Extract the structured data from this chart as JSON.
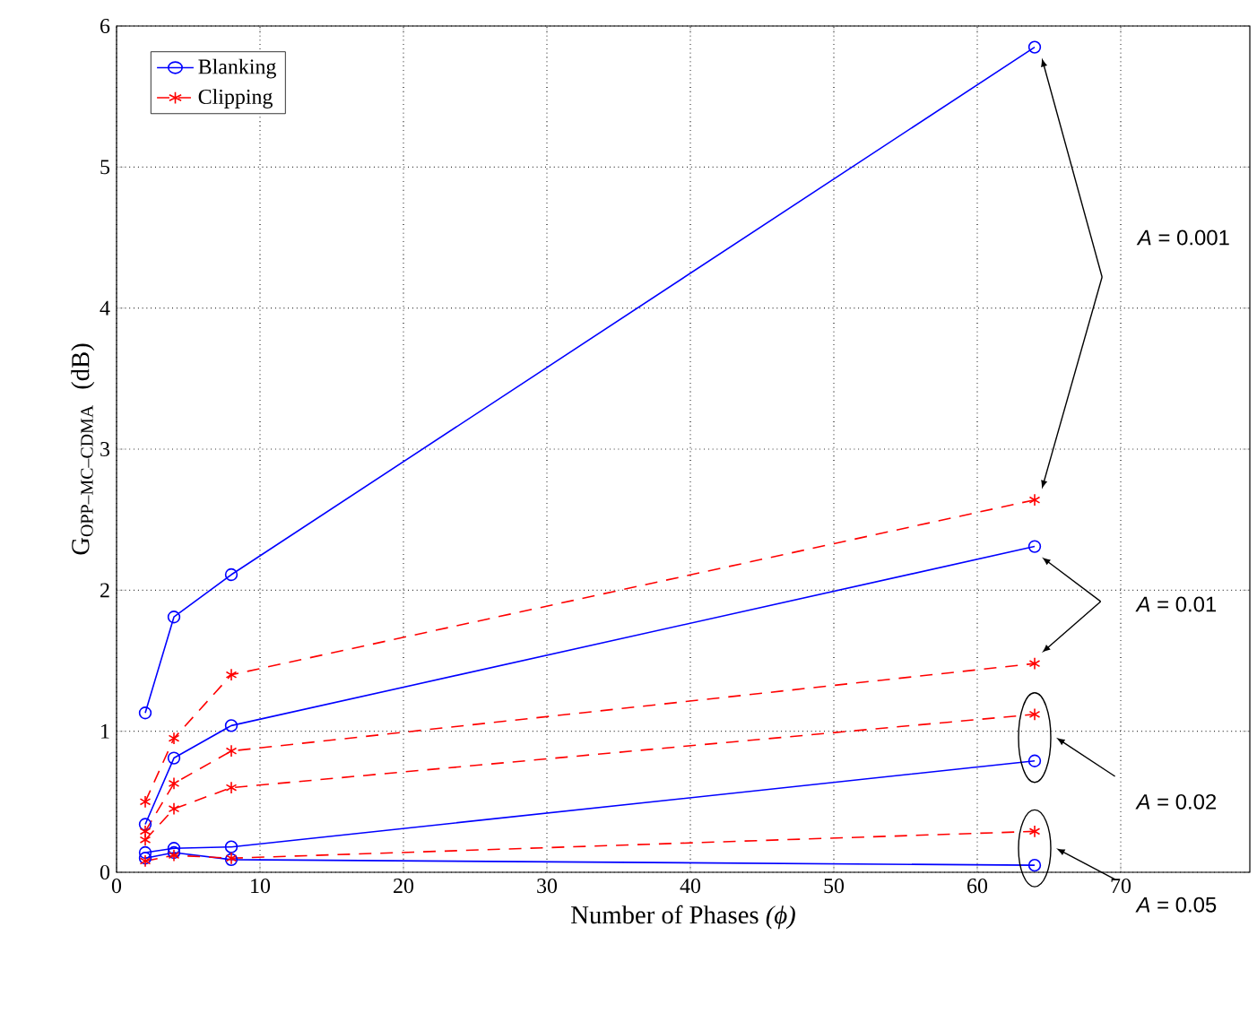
{
  "chart_data": {
    "type": "line",
    "xlabel": "Number of Phases *(ϕ)*",
    "ylabel": "\\mathrm{G}_{\\textrm{OPP–MC–CDMA}}\\;\\;\\textrm{(dB)}",
    "xlim": [
      0,
      79
    ],
    "xticks": [
      0,
      10,
      20,
      30,
      40,
      50,
      60,
      70
    ],
    "ylim": [
      0,
      6
    ],
    "yticks": [
      0,
      1,
      2,
      3,
      4,
      5,
      6
    ],
    "grid": true,
    "legend": "top left",
    "x": [
      2,
      4,
      8,
      64
    ],
    "series": [
      {
        "name": "Blanking",
        "color": "#0000ff",
        "marker": "circle",
        "line_style": "solid",
        "values": [
          1.13,
          1.81,
          2.11,
          5.85
        ]
      },
      {
        "color": "#0000ff",
        "marker": "circle",
        "line_style": "solid",
        "values": [
          0.34,
          0.81,
          1.04,
          2.31
        ]
      },
      {
        "color": "#0000ff",
        "marker": "circle",
        "line_style": "solid",
        "values": [
          0.14,
          0.17,
          0.18,
          0.79
        ]
      },
      {
        "color": "#0000ff",
        "marker": "circle",
        "line_style": "solid",
        "values": [
          0.1,
          0.14,
          0.09,
          0.05
        ]
      },
      {
        "name": "Clipping",
        "color": "#ff0000",
        "marker": "cross",
        "line_style": "dashed",
        "values": [
          0.5,
          0.95,
          1.4,
          2.64
        ]
      },
      {
        "color": "#ff0000",
        "marker": "cross",
        "line_style": "dashed",
        "values": [
          0.29,
          0.63,
          0.86,
          1.48
        ]
      },
      {
        "color": "#ff0000",
        "marker": "cross",
        "line_style": "dashed",
        "values": [
          0.23,
          0.45,
          0.6,
          1.12
        ]
      },
      {
        "color": "#ff0000",
        "marker": "cross",
        "line_style": "dashed",
        "values": [
          0.08,
          0.12,
          0.1,
          0.29
        ]
      }
    ],
    "annotations": [
      "*A* = 0.001",
      "*A* = 0.01",
      "*A* = 0.02",
      "*A* = 0.05"
    ]
  }
}
